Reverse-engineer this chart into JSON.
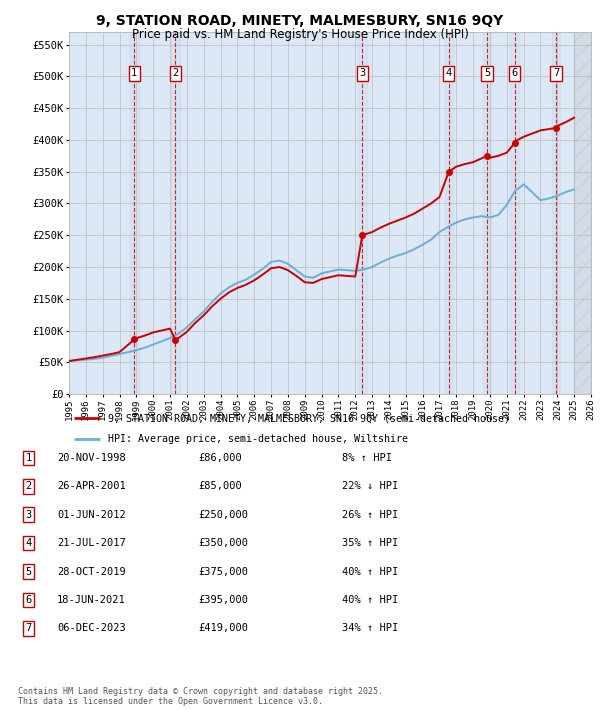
{
  "title_line1": "9, STATION ROAD, MINETY, MALMESBURY, SN16 9QY",
  "title_line2": "Price paid vs. HM Land Registry's House Price Index (HPI)",
  "transactions": [
    {
      "num": 1,
      "date": "20-NOV-1998",
      "price": 86000,
      "year": 1998.88,
      "hpi_pct": "8% ↑ HPI"
    },
    {
      "num": 2,
      "date": "26-APR-2001",
      "price": 85000,
      "year": 2001.32,
      "hpi_pct": "22% ↓ HPI"
    },
    {
      "num": 3,
      "date": "01-JUN-2012",
      "price": 250000,
      "year": 2012.42,
      "hpi_pct": "26% ↑ HPI"
    },
    {
      "num": 4,
      "date": "21-JUL-2017",
      "price": 350000,
      "year": 2017.55,
      "hpi_pct": "35% ↑ HPI"
    },
    {
      "num": 5,
      "date": "28-OCT-2019",
      "price": 375000,
      "year": 2019.83,
      "hpi_pct": "40% ↑ HPI"
    },
    {
      "num": 6,
      "date": "18-JUN-2021",
      "price": 395000,
      "year": 2021.46,
      "hpi_pct": "40% ↑ HPI"
    },
    {
      "num": 7,
      "date": "06-DEC-2023",
      "price": 419000,
      "year": 2023.92,
      "hpi_pct": "34% ↑ HPI"
    }
  ],
  "hpi_color": "#6baed6",
  "price_color": "#cc0000",
  "background_color": "#ffffff",
  "chart_bg": "#dce8f5",
  "grid_color": "#bbbbbb",
  "ylim": [
    0,
    570000
  ],
  "xlim": [
    1995,
    2026
  ],
  "yticks": [
    0,
    50000,
    100000,
    150000,
    200000,
    250000,
    300000,
    350000,
    400000,
    450000,
    500000,
    550000
  ],
  "legend_label_price": "9, STATION ROAD, MINETY, MALMESBURY, SN16 9QY (semi-detached house)",
  "legend_label_hpi": "HPI: Average price, semi-detached house, Wiltshire",
  "footer": "Contains HM Land Registry data © Crown copyright and database right 2025.\nThis data is licensed under the Open Government Licence v3.0.",
  "hpi_data_x": [
    1995,
    1995.5,
    1996,
    1996.5,
    1997,
    1997.5,
    1998,
    1998.5,
    1999,
    1999.5,
    2000,
    2000.5,
    2001,
    2001.5,
    2002,
    2002.5,
    2003,
    2003.5,
    2004,
    2004.5,
    2005,
    2005.5,
    2006,
    2006.5,
    2007,
    2007.5,
    2008,
    2008.5,
    2009,
    2009.5,
    2010,
    2010.5,
    2011,
    2011.5,
    2012,
    2012.5,
    2013,
    2013.5,
    2014,
    2014.5,
    2015,
    2015.5,
    2016,
    2016.5,
    2017,
    2017.5,
    2018,
    2018.5,
    2019,
    2019.5,
    2020,
    2020.5,
    2021,
    2021.5,
    2022,
    2022.5,
    2023,
    2023.5,
    2024,
    2024.5,
    2025
  ],
  "hpi_data_y": [
    52000,
    53000,
    54000,
    55500,
    57000,
    60000,
    63000,
    66000,
    69000,
    73000,
    78000,
    83000,
    88000,
    95000,
    105000,
    118000,
    130000,
    145000,
    158000,
    168000,
    175000,
    180000,
    188000,
    197000,
    208000,
    210000,
    205000,
    195000,
    185000,
    183000,
    190000,
    193000,
    196000,
    195000,
    194000,
    196000,
    200000,
    207000,
    213000,
    218000,
    222000,
    228000,
    235000,
    243000,
    255000,
    263000,
    270000,
    275000,
    278000,
    280000,
    278000,
    282000,
    298000,
    320000,
    330000,
    318000,
    305000,
    308000,
    312000,
    318000,
    322000
  ],
  "price_data_x": [
    1995.0,
    1995.5,
    1996,
    1996.5,
    1997,
    1997.5,
    1998.0,
    1998.88,
    1999,
    1999.5,
    2000,
    2000.5,
    2001.0,
    2001.32,
    2001.5,
    2002,
    2002.5,
    2003,
    2003.5,
    2004,
    2004.5,
    2005,
    2005.5,
    2006,
    2006.5,
    2007,
    2007.5,
    2008,
    2008.5,
    2009,
    2009.5,
    2010,
    2010.5,
    2011,
    2011.5,
    2012,
    2012.42,
    2013,
    2013.5,
    2014,
    2014.5,
    2015,
    2015.5,
    2016,
    2016.5,
    2017,
    2017.55,
    2018,
    2018.5,
    2019,
    2019.83,
    2020,
    2020.5,
    2021,
    2021.46,
    2021.5,
    2022,
    2022.5,
    2023,
    2023.92,
    2024,
    2024.5,
    2025
  ],
  "price_data_y": [
    52000,
    54000,
    56000,
    58000,
    60500,
    63000,
    66000,
    86000,
    88000,
    92000,
    97000,
    100000,
    103000,
    85000,
    88000,
    98000,
    112000,
    124000,
    138000,
    150000,
    160000,
    167000,
    172000,
    179000,
    188000,
    198000,
    200000,
    195000,
    186000,
    176000,
    175000,
    181000,
    184000,
    187000,
    186000,
    185000,
    250000,
    255000,
    262000,
    268000,
    273000,
    278000,
    284000,
    292000,
    300000,
    310000,
    350000,
    358000,
    362000,
    365000,
    375000,
    372000,
    375000,
    380000,
    395000,
    398000,
    405000,
    410000,
    415000,
    419000,
    422000,
    428000,
    435000
  ]
}
